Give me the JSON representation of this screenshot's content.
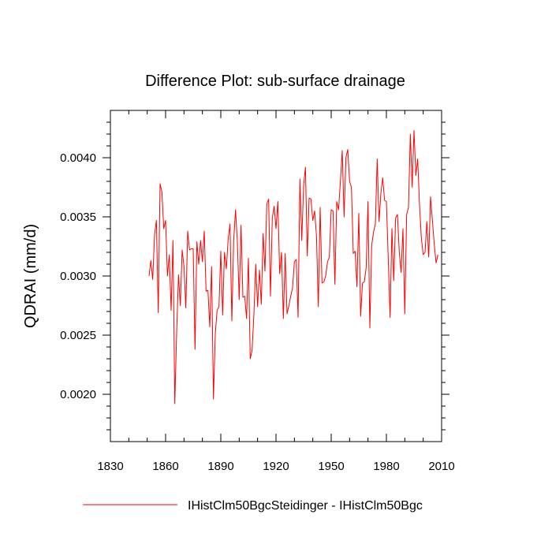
{
  "chart_data": {
    "type": "line",
    "title": "Difference Plot: sub-surface drainage",
    "xlabel": "",
    "ylabel": "QDRAI  (mm/d)",
    "xlim": [
      1830,
      2010
    ],
    "ylim": [
      0.0016,
      0.0044
    ],
    "xticks": [
      1830,
      1860,
      1890,
      1920,
      1950,
      1980,
      2010
    ],
    "yticks": [
      0.002,
      0.0025,
      0.003,
      0.0035,
      0.004
    ],
    "ytick_labels": [
      "0.0020",
      "0.0025",
      "0.0030",
      "0.0035",
      "0.0040"
    ],
    "grid": false,
    "legend_position": "bottom-center",
    "series": [
      {
        "name": "IHistClm50BgcSteidinger - IHistClm50Bgc",
        "color": "#ff0000",
        "x_start": 1851,
        "x_step": 1,
        "values": [
          0.003,
          0.00313,
          0.00297,
          0.00335,
          0.00347,
          0.00269,
          0.00378,
          0.00371,
          0.0034,
          0.00347,
          0.003,
          0.00318,
          0.00271,
          0.0033,
          0.00192,
          0.00252,
          0.00301,
          0.00275,
          0.00322,
          0.00308,
          0.00273,
          0.00338,
          0.00322,
          0.00323,
          0.00323,
          0.00238,
          0.00329,
          0.0031,
          0.0033,
          0.00312,
          0.00338,
          0.00287,
          0.00288,
          0.00257,
          0.00308,
          0.00196,
          0.00251,
          0.00271,
          0.00274,
          0.00321,
          0.00267,
          0.0032,
          0.00306,
          0.00331,
          0.00344,
          0.00262,
          0.0033,
          0.00356,
          0.00329,
          0.0028,
          0.00343,
          0.00282,
          0.00283,
          0.00264,
          0.00315,
          0.0023,
          0.00237,
          0.00268,
          0.0031,
          0.00274,
          0.00305,
          0.00276,
          0.00336,
          0.00304,
          0.00361,
          0.00365,
          0.00283,
          0.00349,
          0.00359,
          0.0034,
          0.00363,
          0.00302,
          0.0032,
          0.00264,
          0.00319,
          0.00268,
          0.00275,
          0.00283,
          0.0029,
          0.00312,
          0.00314,
          0.00265,
          0.00382,
          0.0033,
          0.00376,
          0.00392,
          0.00317,
          0.00366,
          0.00365,
          0.00347,
          0.00355,
          0.00334,
          0.00274,
          0.00358,
          0.00294,
          0.00295,
          0.003,
          0.00312,
          0.00316,
          0.00356,
          0.00355,
          0.00293,
          0.00363,
          0.00356,
          0.0038,
          0.00406,
          0.0035,
          0.004,
          0.00407,
          0.0038,
          0.00375,
          0.00319,
          0.00321,
          0.00291,
          0.00353,
          0.00266,
          0.00294,
          0.00295,
          0.00307,
          0.00363,
          0.00256,
          0.00326,
          0.00337,
          0.00344,
          0.00399,
          0.00346,
          0.0037,
          0.00383,
          0.00364,
          0.00363,
          0.00315,
          0.00265,
          0.0034,
          0.00296,
          0.00349,
          0.00352,
          0.0032,
          0.00303,
          0.0034,
          0.00268,
          0.00352,
          0.00358,
          0.0042,
          0.00375,
          0.00423,
          0.00385,
          0.00399,
          0.0036,
          0.00332,
          0.00318,
          0.0032,
          0.00346,
          0.00316,
          0.00367,
          0.00347,
          0.00327,
          0.00311,
          0.00318
        ]
      }
    ]
  }
}
